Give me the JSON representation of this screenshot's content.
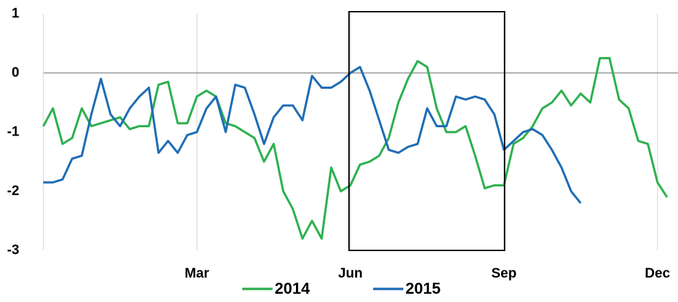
{
  "chart_data": {
    "type": "line",
    "categories": [
      null,
      null,
      null,
      null,
      null,
      null,
      null,
      null,
      null,
      null,
      null,
      null,
      null,
      null,
      null,
      null,
      "Mar",
      null,
      null,
      null,
      null,
      null,
      null,
      null,
      null,
      null,
      null,
      null,
      null,
      null,
      null,
      null,
      "Jun",
      null,
      null,
      null,
      null,
      null,
      null,
      null,
      null,
      null,
      null,
      null,
      null,
      null,
      null,
      null,
      "Sep",
      null,
      null,
      null,
      null,
      null,
      null,
      null,
      null,
      null,
      null,
      null,
      null,
      null,
      null,
      null,
      "Dec",
      null
    ],
    "series": [
      {
        "name": "2014",
        "color": "#2eb04f",
        "values": [
          -0.9,
          -0.6,
          -1.2,
          -1.1,
          -0.6,
          -0.9,
          -0.85,
          -0.8,
          -0.75,
          -0.95,
          -0.9,
          -0.9,
          -0.2,
          -0.15,
          -0.85,
          -0.85,
          -0.4,
          -0.3,
          -0.4,
          -0.85,
          -0.9,
          -1.0,
          -1.1,
          -1.5,
          -1.2,
          -2.0,
          -2.3,
          -2.8,
          -2.5,
          -2.8,
          -1.6,
          -2.0,
          -1.9,
          -1.55,
          -1.5,
          -1.4,
          -1.1,
          -0.5,
          -0.1,
          0.2,
          0.1,
          -0.6,
          -1.0,
          -1.0,
          -0.9,
          -1.4,
          -1.95,
          -1.9,
          -1.9,
          -1.2,
          -1.1,
          -0.9,
          -0.6,
          -0.5,
          -0.3,
          -0.55,
          -0.35,
          -0.5,
          0.25,
          0.25,
          -0.45,
          -0.6,
          -1.15,
          -1.2,
          -1.85,
          -2.1
        ]
      },
      {
        "name": "2015",
        "color": "#1f6db5",
        "values": [
          -1.85,
          -1.85,
          -1.8,
          -1.45,
          -1.4,
          -0.7,
          -0.1,
          -0.7,
          -0.9,
          -0.6,
          -0.4,
          -0.25,
          -1.35,
          -1.15,
          -1.35,
          -1.05,
          -1.0,
          -0.6,
          -0.4,
          -1.0,
          -0.2,
          -0.25,
          -0.7,
          -1.2,
          -0.75,
          -0.55,
          -0.55,
          -0.8,
          -0.05,
          -0.25,
          -0.25,
          -0.15,
          0.0,
          0.1,
          -0.3,
          -0.8,
          -1.3,
          -1.35,
          -1.25,
          -1.2,
          -0.6,
          -0.9,
          -0.9,
          -0.4,
          -0.45,
          -0.4,
          -0.45,
          -0.7,
          -1.3,
          -1.15,
          -1.0,
          -0.95,
          -1.05,
          -1.3,
          -1.6,
          -2.0,
          -2.2,
          null,
          null,
          null,
          null,
          null,
          null,
          null,
          null,
          null
        ]
      }
    ],
    "ylim": [
      -3,
      1
    ],
    "yticks": [
      1,
      0,
      -1,
      -2,
      -3
    ],
    "vertical_grid": true,
    "zero_line": true,
    "legend": "bottom",
    "highlight": [
      "Jun",
      "Sep"
    ]
  }
}
